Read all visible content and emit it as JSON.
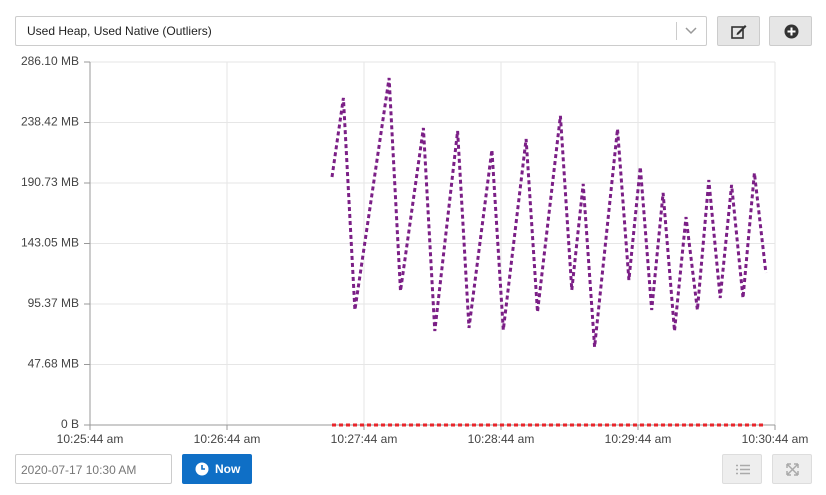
{
  "toolbar": {
    "dropdown": "Used Heap, Used Native (Outliers)"
  },
  "chart_data": {
    "type": "line",
    "x": [
      "10:27:30 am",
      "10:27:35 am",
      "10:27:40 am",
      "10:27:55 am",
      "10:28:00 am",
      "10:28:10 am",
      "10:28:15 am",
      "10:28:25 am",
      "10:28:30 am",
      "10:28:40 am",
      "10:28:45 am",
      "10:28:55 am",
      "10:29:00 am",
      "10:29:10 am",
      "10:29:15 am",
      "10:29:20 am",
      "10:29:25 am",
      "10:29:35 am",
      "10:29:40 am",
      "10:29:45 am",
      "10:29:50 am",
      "10:29:55 am",
      "10:30:00 am",
      "10:30:05 am",
      "10:30:10 am",
      "10:30:15 am",
      "10:30:20 am",
      "10:30:25 am",
      "10:30:30 am",
      "10:30:35 am",
      "10:30:40 am"
    ],
    "series": [
      {
        "color": "#7b1f86",
        "values": [
          195.5,
          257.7,
          90.6,
          273.5,
          105.6,
          234.1,
          74.1,
          231.7,
          76.5,
          216.8,
          74.9,
          225.4,
          89.1,
          243.6,
          106.4,
          190.0,
          61.5,
          233.3,
          114.3,
          203.4,
          90.6,
          182.9,
          74.1,
          163.9,
          90.6,
          193.1,
          100.1,
          189.2,
          100.1,
          198.6,
          119.8
        ]
      },
      {
        "color": "#e8262b",
        "values": [
          0,
          0,
          0,
          0,
          0,
          0,
          0,
          0,
          0,
          0,
          0,
          0,
          0,
          0,
          0,
          0,
          0,
          0,
          0,
          0,
          0,
          0,
          0,
          0,
          0,
          0,
          0,
          0,
          0,
          0,
          0
        ]
      }
    ],
    "xlim": [
      "10:25:44 am",
      "10:30:44 am"
    ],
    "xticks": [
      "10:25:44 am",
      "10:26:44 am",
      "10:27:44 am",
      "10:28:44 am",
      "10:29:44 am",
      "10:30:44 am"
    ],
    "ylim": [
      0,
      286.1
    ],
    "yticks": [
      {
        "value": 0,
        "label": "0 B"
      },
      {
        "value": 47.68,
        "label": "47.68 MB"
      },
      {
        "value": 95.37,
        "label": "95.37 MB"
      },
      {
        "value": 143.05,
        "label": "143.05 MB"
      },
      {
        "value": 190.73,
        "label": "190.73 MB"
      },
      {
        "value": 238.42,
        "label": "238.42 MB"
      },
      {
        "value": 286.1,
        "label": "286.10 MB"
      }
    ],
    "grid": true
  },
  "footer": {
    "date_input": "2020-07-17 10:30 AM",
    "now_button": "Now"
  }
}
